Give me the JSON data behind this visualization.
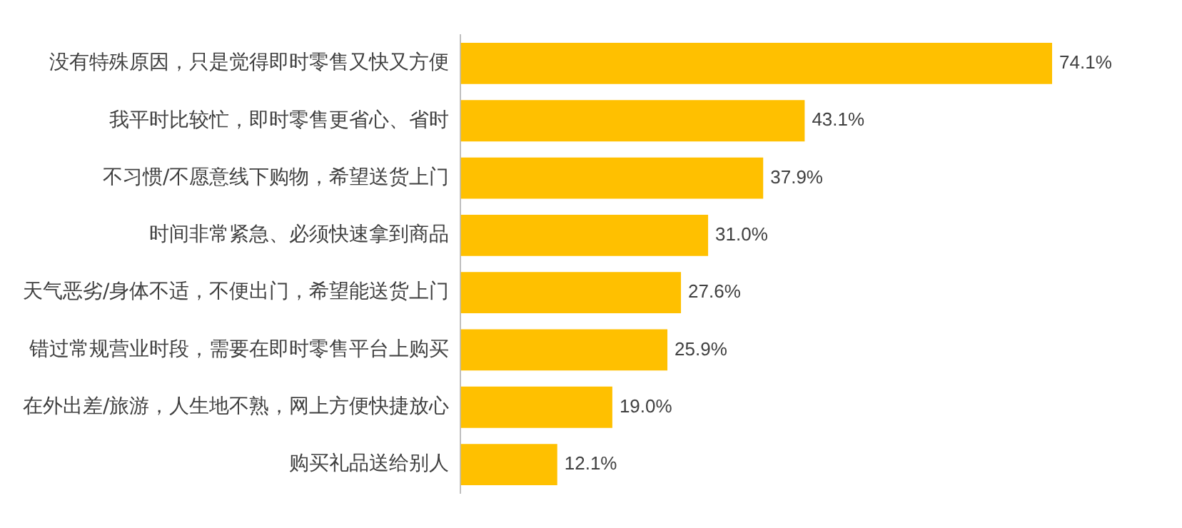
{
  "chart_data": {
    "type": "bar",
    "orientation": "horizontal",
    "categories": [
      "没有特殊原因，只是觉得即时零售又快又方便",
      "我平时比较忙，即时零售更省心、省时",
      "不习惯/不愿意线下购物，希望送货上门",
      "时间非常紧急、必须快速拿到商品",
      "天气恶劣/身体不适，不便出门，希望能送货上门",
      "错过常规营业时段，需要在即时零售平台上购买",
      "在外出差/旅游，人生地不熟，网上方便快捷放心",
      "购买礼品送给别人"
    ],
    "values": [
      74.1,
      43.1,
      37.9,
      31.0,
      27.6,
      25.9,
      19.0,
      12.1
    ],
    "value_labels": [
      "74.1%",
      "43.1%",
      "37.9%",
      "31.0%",
      "27.6%",
      "25.9%",
      "19.0%",
      "12.1%"
    ],
    "color": "#ffc000",
    "tick_labels": "y",
    "grid": false,
    "legend": false
  }
}
